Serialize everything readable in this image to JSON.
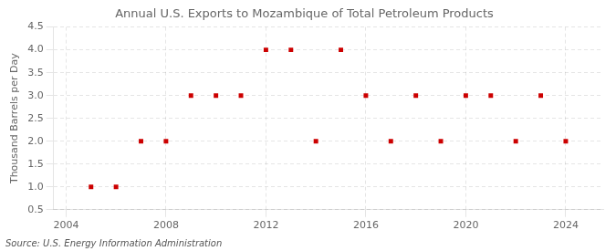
{
  "chart_data": {
    "type": "scatter",
    "title": "Annual U.S. Exports to Mozambique of Total Petroleum Products",
    "ylabel": "Thousand Barrels per Day",
    "annotations": [
      "Source: U.S. Energy Information Administration"
    ],
    "x": [
      2005,
      2006,
      2007,
      2008,
      2009,
      2010,
      2011,
      2012,
      2013,
      2014,
      2015,
      2016,
      2017,
      2018,
      2019,
      2020,
      2021,
      2022,
      2023,
      2024
    ],
    "values": [
      1,
      1,
      2,
      2,
      3,
      3,
      3,
      4,
      4,
      2,
      4,
      3,
      2,
      3,
      2,
      3,
      3,
      2,
      3,
      2
    ],
    "color": "#cc0000",
    "marker": "square",
    "xlim": [
      2003.5,
      2025.5
    ],
    "xticks": [
      2004,
      2008,
      2012,
      2016,
      2020,
      2024
    ],
    "ylim": [
      0.5,
      4.5
    ],
    "yticks": [
      0.5,
      {
        "value": 1,
        "label": "1.0"
      },
      1.5,
      {
        "value": 2,
        "label": "2.0"
      },
      2.5,
      {
        "value": 3,
        "label": "3.0"
      },
      3.5,
      {
        "value": 4,
        "label": "4.0"
      },
      4.5
    ],
    "grid": true
  }
}
